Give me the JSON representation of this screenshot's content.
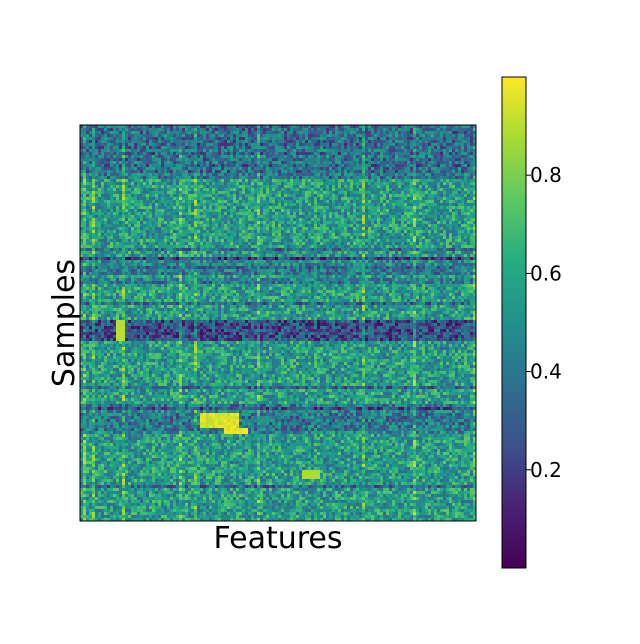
{
  "chart_data": {
    "type": "heatmap",
    "title": "",
    "xlabel": "Features",
    "ylabel": "Samples",
    "x_ticks": [],
    "y_ticks": [],
    "colormap": "viridis",
    "value_range": [
      0,
      1
    ],
    "colorbar": {
      "ticks": [
        0.2,
        0.4,
        0.6,
        0.8
      ],
      "tick_labels": [
        "0.2",
        "0.4",
        "0.6",
        "0.8"
      ],
      "vmin": 0.0,
      "vmax": 1.0
    },
    "dominant_value": 0.55,
    "notes": "Dense clustered matrix; values mostly 0.5-0.7 with dark horizontal bands (low values) and a few bright yellow blocks."
  }
}
